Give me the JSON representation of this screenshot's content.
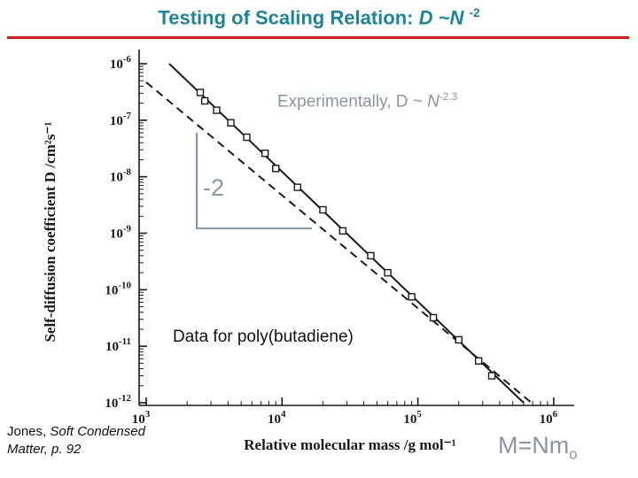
{
  "slide": {
    "title": {
      "prefix": "Testing of Scaling Relation: ",
      "formula": "D ~N ",
      "exponent": "-2"
    },
    "annotations": {
      "experimental": {
        "prefix": "Experimentally, D ~ ",
        "variable": "N",
        "exponent": "-2.3"
      },
      "slope_label": "-2",
      "data_label": "Data for poly(butadiene)",
      "mass_relation": {
        "base": "M=Nm",
        "subscript": "o"
      }
    },
    "citation": {
      "line1_regular": "Jones, ",
      "line1_italic": "Soft Condensed",
      "line2_italic": "Matter, p. 92"
    },
    "colors": {
      "title": "#1b869b",
      "accent_red": "#ee1111",
      "muted_blue": "#8b94a6",
      "bracket_blue": "#8094c4",
      "ink": "#1a1a1a"
    }
  },
  "chart_data": {
    "type": "scatter",
    "x_scale": "log",
    "y_scale": "log",
    "xlabel": "Relative molecular mass /g mol⁻¹",
    "ylabel": "Self-diffusion coefficient D /cm²s⁻¹",
    "x_range": [
      1000,
      1000000
    ],
    "y_range": [
      1e-12,
      1e-06
    ],
    "x_tick_exponents": [
      3,
      4,
      5,
      6
    ],
    "y_tick_exponents": [
      -6,
      -7,
      -8,
      -9,
      -10,
      -11,
      -12
    ],
    "series": [
      {
        "name": "poly(butadiene) self-diffusion data",
        "marker": "open-square",
        "points": [
          [
            2500,
            3.1e-07
          ],
          [
            2700,
            2.2e-07
          ],
          [
            3300,
            1.5e-07
          ],
          [
            4200,
            9e-08
          ],
          [
            5500,
            5e-08
          ],
          [
            7500,
            2.6e-08
          ],
          [
            9000,
            1.4e-08
          ],
          [
            13000,
            6.5e-09
          ],
          [
            20000,
            2.6e-09
          ],
          [
            28000,
            1.1e-09
          ],
          [
            45000,
            4e-10
          ],
          [
            60000,
            2e-10
          ],
          [
            90000,
            7.5e-11
          ],
          [
            130000,
            3.2e-11
          ],
          [
            200000,
            1.3e-11
          ],
          [
            280000,
            5.5e-12
          ],
          [
            350000,
            3e-12
          ]
        ]
      }
    ],
    "lines": [
      {
        "label": "experimental fit D ~ M^-2.3",
        "style": "solid",
        "slope": -2.3,
        "coefficient": 19.5
      },
      {
        "label": "scaling prediction D ~ M^-2",
        "style": "dashed",
        "slope": -2,
        "coefficient": 0.47
      }
    ]
  }
}
